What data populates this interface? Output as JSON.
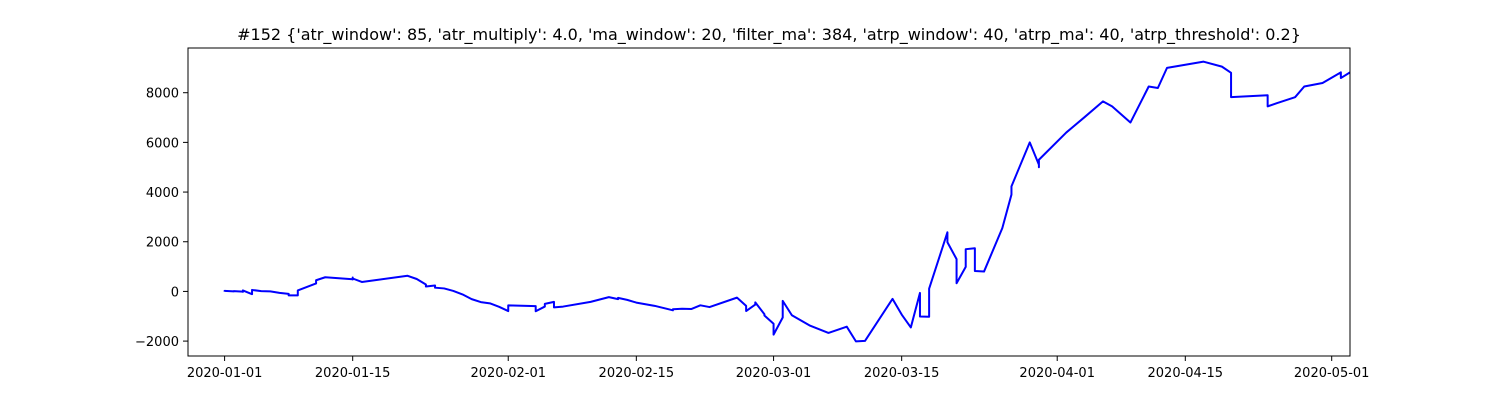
{
  "chart_data": {
    "type": "line",
    "title": "#152 {'atr_window': 85, 'atr_multiply': 4.0, 'ma_window': 20, 'filter_ma': 384, 'atrp_window': 40, 'atrp_ma': 40, 'atrp_threshold': 0.2}",
    "xlabel": "",
    "ylabel": "",
    "x_axis_type": "date",
    "xlim": [
      "2019-12-28",
      "2020-05-03"
    ],
    "ylim": [
      -2600,
      9800
    ],
    "grid": false,
    "line_color": "#0000ff",
    "x_ticks": [
      "2020-01-01",
      "2020-01-15",
      "2020-02-01",
      "2020-02-15",
      "2020-03-01",
      "2020-03-15",
      "2020-04-01",
      "2020-04-15",
      "2020-05-01"
    ],
    "y_ticks": [
      -2000,
      0,
      2000,
      4000,
      6000,
      8000
    ],
    "y_tick_labels": [
      "−2000",
      "0",
      "2000",
      "4000",
      "6000",
      "8000"
    ],
    "series": [
      {
        "points": [
          [
            "2020-01-01",
            -10
          ],
          [
            "2020-01-01",
            20
          ],
          [
            "2020-01-02",
            0
          ],
          [
            "2020-01-02",
            10
          ],
          [
            "2020-01-03",
            -10
          ],
          [
            "2020-01-03",
            30
          ],
          [
            "2020-01-03",
            -20
          ],
          [
            "2020-01-03",
            40
          ],
          [
            "2020-01-04",
            -110
          ],
          [
            "2020-01-04",
            60
          ],
          [
            "2020-01-05",
            10
          ],
          [
            "2020-01-06",
            0
          ],
          [
            "2020-01-07",
            -60
          ],
          [
            "2020-01-08",
            -100
          ],
          [
            "2020-01-08",
            -160
          ],
          [
            "2020-01-09",
            -160
          ],
          [
            "2020-01-09",
            -150
          ],
          [
            "2020-01-09",
            40
          ],
          [
            "2020-01-11",
            320
          ],
          [
            "2020-01-11",
            450
          ],
          [
            "2020-01-12",
            570
          ],
          [
            "2020-01-15",
            490
          ],
          [
            "2020-01-15",
            480
          ],
          [
            "2020-01-15",
            560
          ],
          [
            "2020-01-15",
            520
          ],
          [
            "2020-01-16",
            380
          ],
          [
            "2020-01-17",
            430
          ],
          [
            "2020-01-21",
            630
          ],
          [
            "2020-01-22",
            500
          ],
          [
            "2020-01-23",
            280
          ],
          [
            "2020-01-23",
            200
          ],
          [
            "2020-01-24",
            240
          ],
          [
            "2020-01-24",
            150
          ],
          [
            "2020-01-25",
            120
          ],
          [
            "2020-01-26",
            20
          ],
          [
            "2020-01-27",
            -120
          ],
          [
            "2020-01-28",
            -310
          ],
          [
            "2020-01-29",
            -430
          ],
          [
            "2020-01-30",
            -480
          ],
          [
            "2020-01-31",
            -620
          ],
          [
            "2020-02-01",
            -790
          ],
          [
            "2020-02-01",
            -560
          ],
          [
            "2020-02-04",
            -590
          ],
          [
            "2020-02-04",
            -800
          ],
          [
            "2020-02-05",
            -610
          ],
          [
            "2020-02-05",
            -500
          ],
          [
            "2020-02-06",
            -420
          ],
          [
            "2020-02-06",
            -640
          ],
          [
            "2020-02-07",
            -610
          ],
          [
            "2020-02-10",
            -420
          ],
          [
            "2020-02-12",
            -230
          ],
          [
            "2020-02-13",
            -310
          ],
          [
            "2020-02-13",
            -260
          ],
          [
            "2020-02-14",
            -340
          ],
          [
            "2020-02-15",
            -450
          ],
          [
            "2020-02-17",
            -580
          ],
          [
            "2020-02-19",
            -760
          ],
          [
            "2020-02-19",
            -720
          ],
          [
            "2020-02-20",
            -700
          ],
          [
            "2020-02-21",
            -710
          ],
          [
            "2020-02-22",
            -560
          ],
          [
            "2020-02-23",
            -630
          ],
          [
            "2020-02-26",
            -250
          ],
          [
            "2020-02-27",
            -580
          ],
          [
            "2020-02-27",
            -790
          ],
          [
            "2020-02-28",
            -530
          ],
          [
            "2020-02-28",
            -440
          ],
          [
            "2020-02-29",
            -920
          ],
          [
            "2020-02-29",
            -970
          ],
          [
            "2020-03-01",
            -1300
          ],
          [
            "2020-03-01",
            -1740
          ],
          [
            "2020-03-02",
            -1050
          ],
          [
            "2020-03-02",
            -380
          ],
          [
            "2020-03-03",
            -960
          ],
          [
            "2020-03-05",
            -1380
          ],
          [
            "2020-03-07",
            -1670
          ],
          [
            "2020-03-09",
            -1420
          ],
          [
            "2020-03-10",
            -2010
          ],
          [
            "2020-03-11",
            -1990
          ],
          [
            "2020-03-14",
            -300
          ],
          [
            "2020-03-15",
            -930
          ],
          [
            "2020-03-16",
            -1450
          ],
          [
            "2020-03-17",
            -60
          ],
          [
            "2020-03-17",
            -1010
          ],
          [
            "2020-03-18",
            -1020
          ],
          [
            "2020-03-18",
            110
          ],
          [
            "2020-03-20",
            2380
          ],
          [
            "2020-03-20",
            1980
          ],
          [
            "2020-03-21",
            1300
          ],
          [
            "2020-03-21",
            330
          ],
          [
            "2020-03-22",
            990
          ],
          [
            "2020-03-22",
            1700
          ],
          [
            "2020-03-23",
            1740
          ],
          [
            "2020-03-23",
            820
          ],
          [
            "2020-03-24",
            800
          ],
          [
            "2020-03-26",
            2550
          ],
          [
            "2020-03-27",
            3900
          ],
          [
            "2020-03-27",
            4230
          ],
          [
            "2020-03-29",
            6000
          ],
          [
            "2020-03-30",
            5100
          ],
          [
            "2020-03-30",
            5000
          ],
          [
            "2020-03-30",
            5300
          ],
          [
            "2020-04-02",
            6400
          ],
          [
            "2020-04-04",
            7020
          ],
          [
            "2020-04-06",
            7650
          ],
          [
            "2020-04-07",
            7450
          ],
          [
            "2020-04-09",
            6800
          ],
          [
            "2020-04-11",
            8250
          ],
          [
            "2020-04-12",
            8190
          ],
          [
            "2020-04-13",
            9000
          ],
          [
            "2020-04-17",
            9250
          ],
          [
            "2020-04-19",
            9050
          ],
          [
            "2020-04-20",
            8800
          ],
          [
            "2020-04-20",
            7820
          ],
          [
            "2020-04-24",
            7900
          ],
          [
            "2020-04-24",
            7450
          ],
          [
            "2020-04-25",
            7580
          ],
          [
            "2020-04-27",
            7820
          ],
          [
            "2020-04-28",
            8250
          ],
          [
            "2020-04-30",
            8390
          ],
          [
            "2020-05-02",
            8820
          ],
          [
            "2020-05-02",
            8590
          ],
          [
            "2020-05-03",
            8820
          ]
        ]
      }
    ]
  }
}
